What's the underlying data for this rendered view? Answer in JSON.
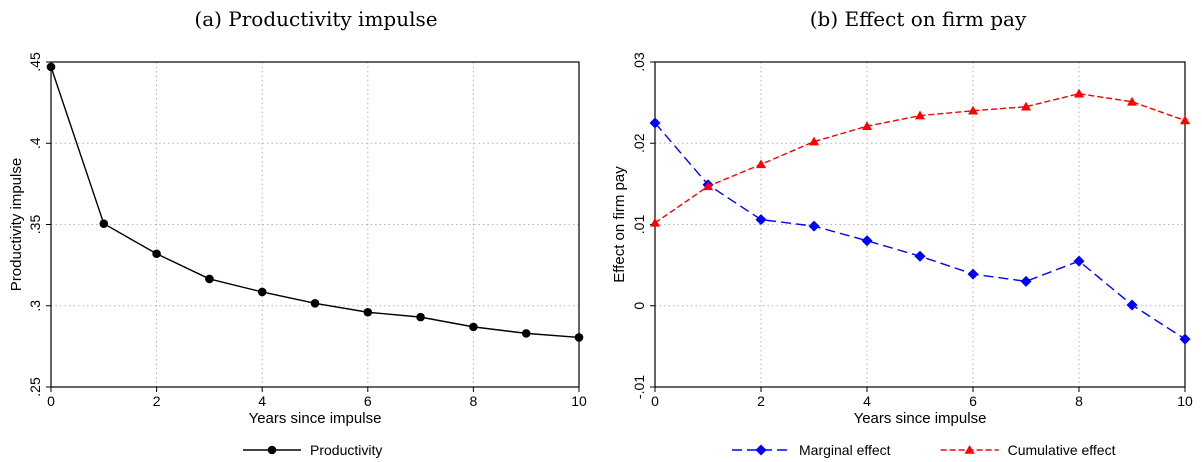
{
  "chart_data": [
    {
      "id": "panel_a",
      "type": "line",
      "title": "(a) Productivity impulse",
      "xlabel": "Years since impulse",
      "ylabel": "Productivity impulse",
      "xlim": [
        0,
        10
      ],
      "ylim": [
        0.25,
        0.45
      ],
      "xticks": [
        0,
        2,
        4,
        6,
        8,
        10
      ],
      "xtick_labels": [
        "0",
        "2",
        "4",
        "6",
        "8",
        "10"
      ],
      "yticks": [
        0.25,
        0.3,
        0.35,
        0.4,
        0.45
      ],
      "ytick_labels": [
        ".25",
        ".3",
        ".35",
        ".4",
        ".45"
      ],
      "grid": true,
      "legend_position": "bottom",
      "x": [
        0,
        1,
        2,
        3,
        4,
        5,
        6,
        7,
        8,
        9,
        10
      ],
      "series": [
        {
          "name": "Productivity",
          "color": "#000000",
          "marker": "circle",
          "dash": "solid",
          "values": [
            0.447,
            0.3505,
            0.332,
            0.3165,
            0.3085,
            0.3015,
            0.296,
            0.293,
            0.287,
            0.283,
            0.2805
          ]
        }
      ]
    },
    {
      "id": "panel_b",
      "type": "line",
      "title": "(b) Effect on firm pay",
      "xlabel": "Years since impulse",
      "ylabel": "Effect on firm pay",
      "xlim": [
        0,
        10
      ],
      "ylim": [
        -0.01,
        0.03
      ],
      "xticks": [
        0,
        2,
        4,
        6,
        8,
        10
      ],
      "xtick_labels": [
        "0",
        "2",
        "4",
        "6",
        "8",
        "10"
      ],
      "yticks": [
        -0.01,
        0,
        0.01,
        0.02,
        0.03
      ],
      "ytick_labels": [
        "-.01",
        "0",
        ".01",
        ".02",
        ".03"
      ],
      "grid": true,
      "legend_position": "bottom",
      "x": [
        0,
        1,
        2,
        3,
        4,
        5,
        6,
        7,
        8,
        9,
        10
      ],
      "series": [
        {
          "name": "Marginal effect",
          "color": "#0000ff",
          "marker": "diamond",
          "dash": "longdash",
          "values": [
            0.0225,
            0.0149,
            0.0106,
            0.0098,
            0.008,
            0.0061,
            0.0039,
            0.003,
            0.0055,
            0.0001,
            -0.0041
          ]
        },
        {
          "name": "Cumulative effect",
          "color": "#ff0000",
          "marker": "triangle",
          "dash": "shortdash",
          "values": [
            0.0102,
            0.0147,
            0.0174,
            0.0202,
            0.0221,
            0.0234,
            0.024,
            0.0245,
            0.0261,
            0.0251,
            0.0228
          ]
        }
      ]
    }
  ]
}
